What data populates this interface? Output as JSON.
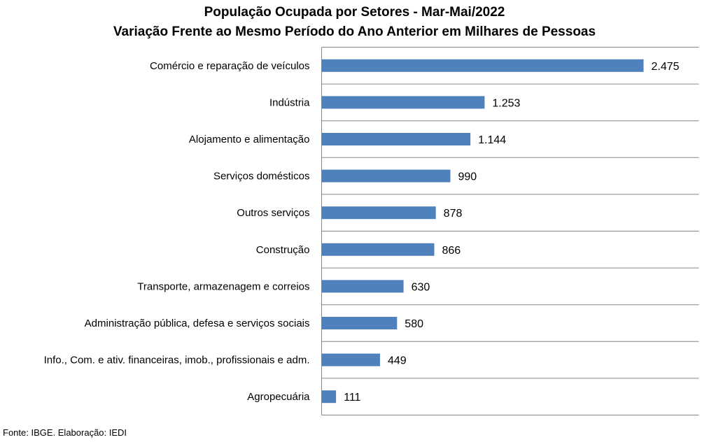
{
  "chart_data": {
    "type": "bar",
    "orientation": "horizontal",
    "title": "População Ocupada por Setores - Mar-Mai/2022",
    "subtitle": "Variação Frente ao Mesmo Período do Ano Anterior em Milhares de Pessoas",
    "categories": [
      "Comércio e reparação de veículos",
      "Indústria",
      "Alojamento e alimentação",
      "Serviços domésticos",
      "Outros serviços",
      "Construção",
      "Transporte, armazenagem e correios",
      "Administração pública, defesa e serviços sociais",
      "Info., Com. e ativ. financeiras, imob., profissionais e adm.",
      "Agropecuária"
    ],
    "values": [
      2475,
      1253,
      1144,
      990,
      878,
      866,
      630,
      580,
      449,
      111
    ],
    "value_labels": [
      "2.475",
      "1.253",
      "1.144",
      "990",
      "878",
      "866",
      "630",
      "580",
      "449",
      "111"
    ],
    "xlim": [
      0,
      2900
    ],
    "grid": true,
    "legend": "none",
    "bar_color": "#4F81BD"
  },
  "source_note": "Fonte: IBGE. Elaboração: IEDI"
}
